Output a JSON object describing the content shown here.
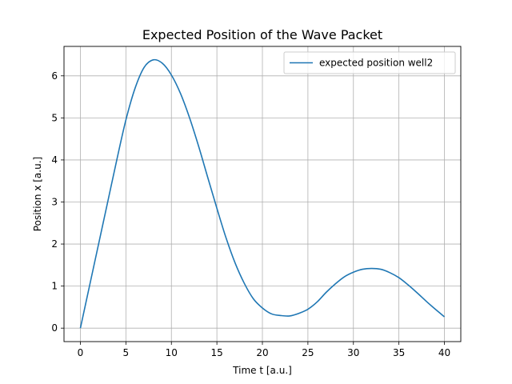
{
  "chart_data": {
    "type": "line",
    "title": "Expected Position of the Wave Packet",
    "xlabel": "Time t [a.u.]",
    "ylabel": "Position x [a.u.]",
    "xlim": [
      -1.8,
      41.8
    ],
    "ylim": [
      -0.32,
      6.7
    ],
    "xticks": [
      0,
      5,
      10,
      15,
      20,
      25,
      30,
      35,
      40
    ],
    "yticks": [
      0,
      1,
      2,
      3,
      4,
      5,
      6
    ],
    "xtick_labels": [
      "0",
      "5",
      "10",
      "15",
      "20",
      "25",
      "30",
      "35",
      "40"
    ],
    "ytick_labels": [
      "0",
      "1",
      "2",
      "3",
      "4",
      "5",
      "6"
    ],
    "grid": true,
    "legend_position": "upper right",
    "series": [
      {
        "name": "expected position well2",
        "color": "#1f77b4",
        "x": [
          0,
          1,
          2,
          3,
          4,
          5,
          6,
          7,
          8,
          9,
          10,
          11,
          12,
          13,
          14,
          15,
          16,
          17,
          18,
          19,
          20,
          21,
          22,
          23,
          24,
          25,
          26,
          27,
          28,
          29,
          30,
          31,
          32,
          33,
          34,
          35,
          36,
          37,
          38,
          39,
          40
        ],
        "y": [
          0.0,
          1.0,
          2.0,
          3.0,
          4.0,
          4.95,
          5.7,
          6.2,
          6.38,
          6.3,
          6.02,
          5.58,
          5.0,
          4.32,
          3.58,
          2.85,
          2.15,
          1.55,
          1.07,
          0.7,
          0.48,
          0.34,
          0.3,
          0.29,
          0.35,
          0.45,
          0.62,
          0.85,
          1.05,
          1.22,
          1.33,
          1.4,
          1.42,
          1.4,
          1.32,
          1.2,
          1.03,
          0.84,
          0.64,
          0.45,
          0.27
        ]
      }
    ]
  }
}
